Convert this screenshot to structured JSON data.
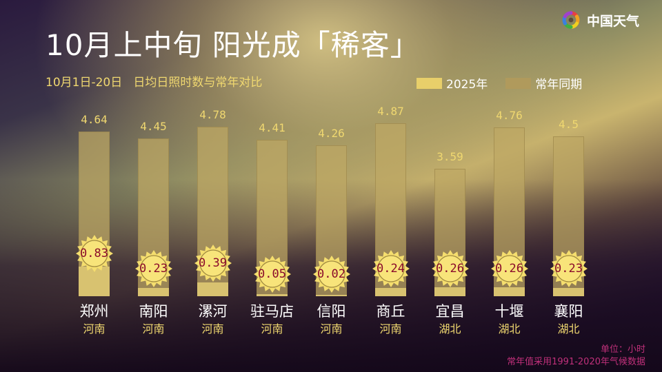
{
  "header": {
    "title": "10月上中旬 阳光成「稀客」",
    "subtitle": "10月1日-20日   日均日照时数与常年对比"
  },
  "logo": {
    "text": "中国天气",
    "icon": "china-weather-pinwheel-icon"
  },
  "legend": {
    "items": [
      {
        "label": "2025年",
        "color": "#e8cf6a"
      },
      {
        "label": "常年同期",
        "color": "#b09a5c"
      }
    ]
  },
  "bars": [
    {
      "city": "郑州",
      "province": "河南",
      "normal": "4.64",
      "y2025": "0.83"
    },
    {
      "city": "南阳",
      "province": "河南",
      "normal": "4.45",
      "y2025": "0.23"
    },
    {
      "city": "漯河",
      "province": "河南",
      "normal": "4.78",
      "y2025": "0.39"
    },
    {
      "city": "驻马店",
      "province": "河南",
      "normal": "4.41",
      "y2025": "0.05"
    },
    {
      "city": "信阳",
      "province": "河南",
      "normal": "4.26",
      "y2025": "0.02"
    },
    {
      "city": "商丘",
      "province": "河南",
      "normal": "4.87",
      "y2025": "0.24"
    },
    {
      "city": "宜昌",
      "province": "湖北",
      "normal": "3.59",
      "y2025": "0.26"
    },
    {
      "city": "十堰",
      "province": "湖北",
      "normal": "4.76",
      "y2025": "0.26"
    },
    {
      "city": "襄阳",
      "province": "湖北",
      "normal": "4.5",
      "y2025": "0.23"
    }
  ],
  "footer": {
    "unit": "单位：小时",
    "note": "常年值采用1991-2020年气候数据"
  },
  "chart_data": {
    "type": "bar",
    "title": "10月上中旬 阳光成「稀客」",
    "subtitle": "10月1日-20日 日均日照时数与常年对比",
    "categories": [
      "郑州",
      "南阳",
      "漯河",
      "驻马店",
      "信阳",
      "商丘",
      "宜昌",
      "十堰",
      "襄阳"
    ],
    "category_groups": [
      "河南",
      "河南",
      "河南",
      "河南",
      "河南",
      "河南",
      "湖北",
      "湖北",
      "湖北"
    ],
    "series": [
      {
        "name": "2025年",
        "values": [
          0.83,
          0.23,
          0.39,
          0.05,
          0.02,
          0.24,
          0.26,
          0.26,
          0.23
        ]
      },
      {
        "name": "常年同期",
        "values": [
          4.64,
          4.45,
          4.78,
          4.41,
          4.26,
          4.87,
          3.59,
          4.76,
          4.5
        ]
      }
    ],
    "xlabel": "",
    "ylabel": "单位：小时",
    "legend_position": "top-right",
    "grid": false,
    "overlapped_bars": true,
    "annotations": [
      "常年值采用1991-2020年气候数据"
    ]
  }
}
